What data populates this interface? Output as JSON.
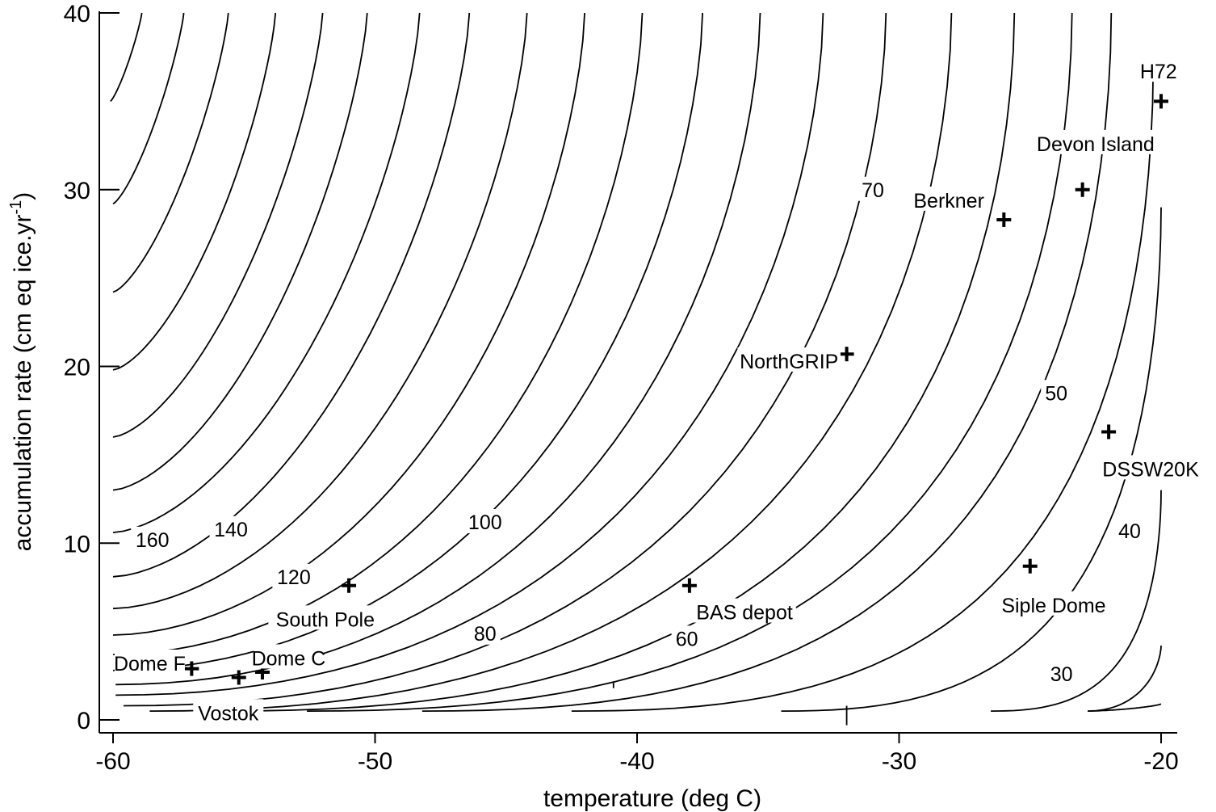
{
  "chart_data": {
    "type": "contour",
    "xlabel": "temperature (deg C)",
    "ylabel": "accumulation rate (cm eq ice.yr",
    "ylabel_superscript": "-1",
    "ylabel_close": ")",
    "xlim": [
      -60,
      -20
    ],
    "ylim": [
      0,
      40
    ],
    "xticks": [
      -60,
      -50,
      -40,
      -30,
      -20
    ],
    "yticks": [
      0,
      10,
      20,
      30,
      40
    ],
    "contour_levels_labeled": [
      {
        "text": "160",
        "x": -58.5,
        "y": 10.2
      },
      {
        "text": "140",
        "x": -55.5,
        "y": 10.8
      },
      {
        "text": "120",
        "x": -53.1,
        "y": 8.1
      },
      {
        "text": "100",
        "x": -45.8,
        "y": 11.2
      },
      {
        "text": "80",
        "x": -45.8,
        "y": 4.9
      },
      {
        "text": "70",
        "x": -31.0,
        "y": 30.0
      },
      {
        "text": "60",
        "x": -38.1,
        "y": 4.6
      },
      {
        "text": "50",
        "x": -24.0,
        "y": 18.5
      },
      {
        "text": "40",
        "x": -21.2,
        "y": 10.7
      },
      {
        "text": "30",
        "x": -23.8,
        "y": 2.6
      }
    ],
    "sites": [
      {
        "name": "H72",
        "x": -20.0,
        "y": 35.0,
        "label_x": -20.1,
        "label_y": 36.7
      },
      {
        "name": "Devon Island",
        "x": -23.0,
        "y": 30.0,
        "label_x": -22.5,
        "label_y": 32.6
      },
      {
        "name": "Berkner",
        "x": -26.0,
        "y": 28.3,
        "label_x": -28.1,
        "label_y": 29.4
      },
      {
        "name": "NorthGRIP",
        "x": -32.0,
        "y": 20.7,
        "label_x": -34.2,
        "label_y": 20.3
      },
      {
        "name": "DSSW20K",
        "x": -22.0,
        "y": 16.3,
        "label_x": -20.4,
        "label_y": 14.2
      },
      {
        "name": "Siple Dome",
        "x": -25.0,
        "y": 8.7,
        "label_x": -24.1,
        "label_y": 6.5
      },
      {
        "name": "BAS depot",
        "x": -38.0,
        "y": 7.6,
        "label_x": -35.9,
        "label_y": 6.1
      },
      {
        "name": "South Pole",
        "x": -51.0,
        "y": 7.6,
        "label_x": -51.9,
        "label_y": 5.7
      },
      {
        "name": "Dome F",
        "x": -57.0,
        "y": 2.9,
        "label_x": -58.6,
        "label_y": 3.2
      },
      {
        "name": "Dome C",
        "x": -54.3,
        "y": 2.7,
        "label_x": -53.3,
        "label_y": 3.5
      },
      {
        "name": "Vostok",
        "x": -55.2,
        "y": 2.4,
        "label_x": -55.6,
        "label_y": 0.4
      }
    ],
    "contours": [
      {
        "x0": -60.4,
        "dx": 11.0,
        "cap": 35.0,
        "k": 0.0,
        "xmin": -60.4
      },
      {
        "x0": -60.4,
        "dx": 9.5,
        "cap": 29.5,
        "k": 0.0,
        "xmin": -60.4
      },
      {
        "x0": -60.4,
        "dx": 7.8,
        "cap": 24.5,
        "k": 0.0,
        "xmin": -60.4
      },
      {
        "x0": -60.4,
        "dx": 6.3,
        "cap": 19.5,
        "k": 0.0,
        "xmin": -60.4
      },
      {
        "x0": -60.4,
        "dx": 5.0,
        "cap": 15.0,
        "k": 0.0,
        "xmin": -60.4
      },
      {
        "x0": -60.4,
        "dx": 3.9,
        "cap": 11.5,
        "k": 0.0,
        "xmin": -60.4
      },
      {
        "x0": -60.4,
        "dx": 3.0,
        "cap": 10.2,
        "k": 0.0,
        "xmin": -60.4
      },
      {
        "x0": -60.4,
        "dx": 2.3,
        "cap": 8.1,
        "k": 0.0,
        "xmin": -60.4
      },
      {
        "x0": -60.4,
        "dx": 1.7,
        "cap": 6.3,
        "k": 0.0,
        "xmin": -60.4
      },
      {
        "x0": -60.4,
        "dx": 1.2,
        "cap": 4.8,
        "k": 0.0,
        "xmin": -60.4
      },
      {
        "x0": -60.4,
        "dx": 0.8,
        "cap": 3.6,
        "k": 0.0,
        "xmin": -60.4
      },
      {
        "x0": -60.4,
        "dx": 0.5,
        "cap": 2.6,
        "k": 0.0,
        "xmin": -60.4
      },
      {
        "x0": -60.4,
        "dx": 0.3,
        "cap": 1.9,
        "k": 0.0,
        "xmin": -60.4
      }
    ]
  }
}
